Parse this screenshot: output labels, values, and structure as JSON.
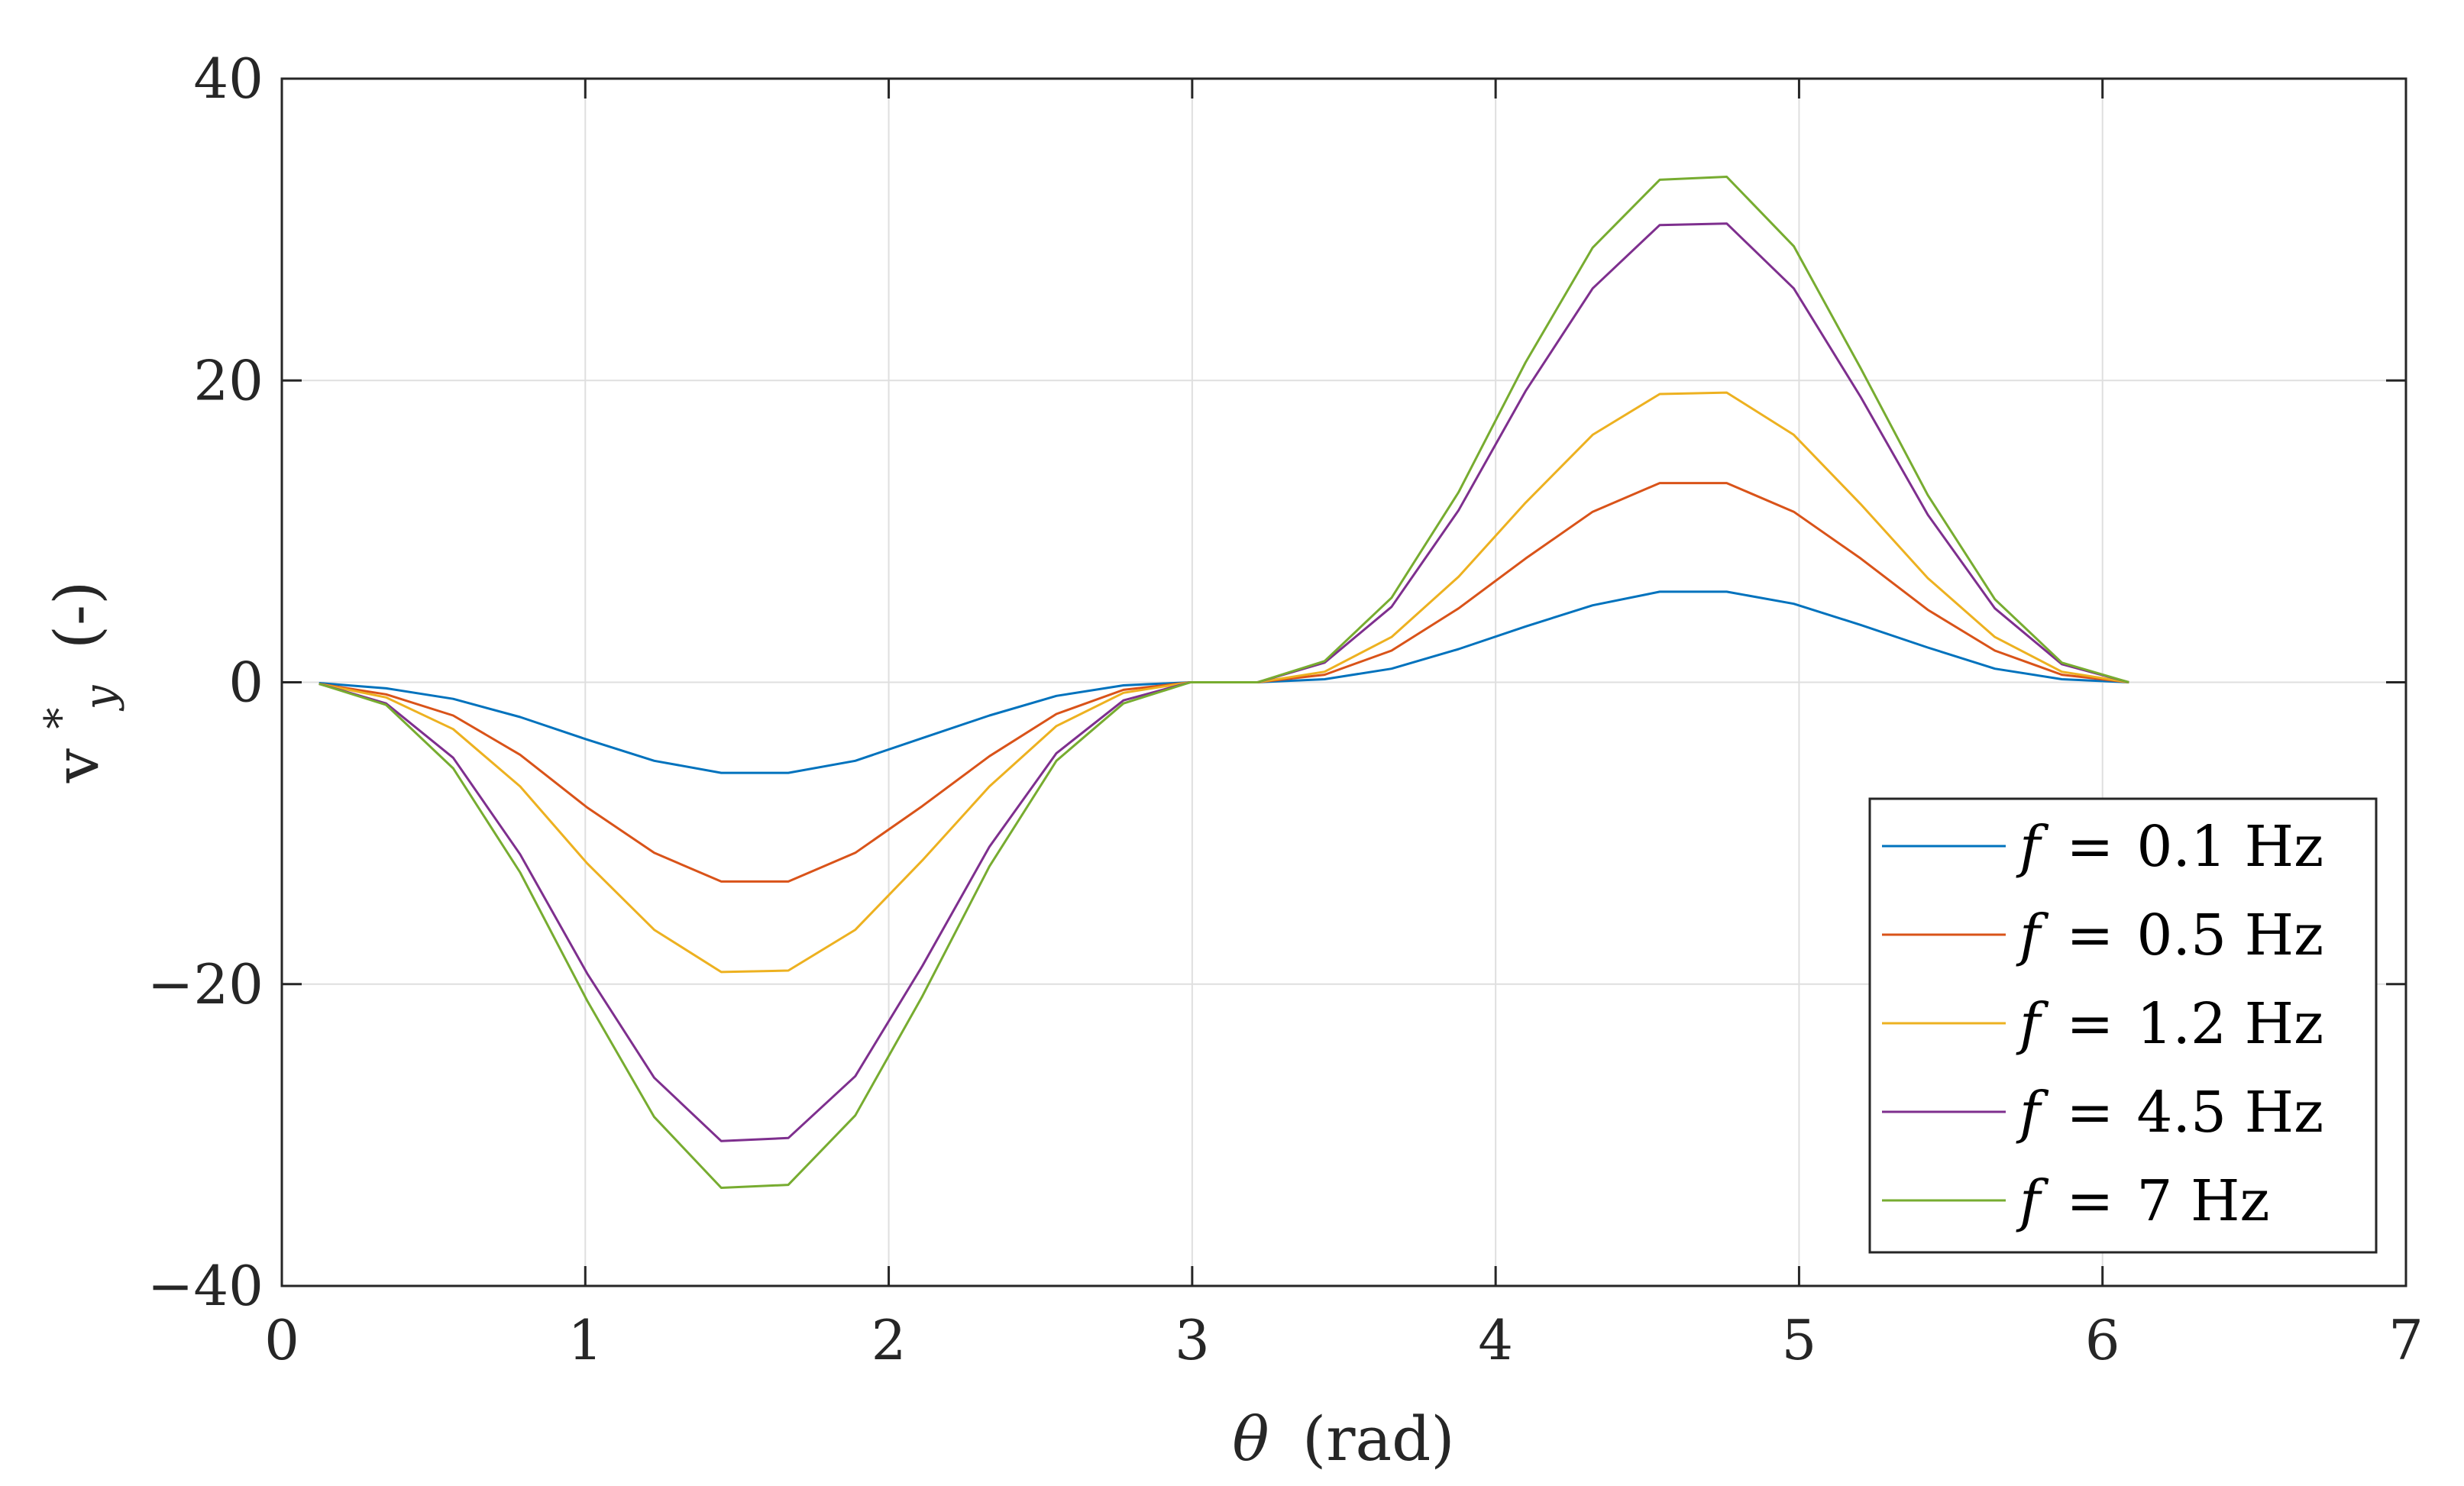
{
  "chart_data": {
    "type": "line",
    "title": "",
    "xlabel_symbol": "θ",
    "xlabel_unit": "(rad)",
    "ylabel_symbol": "v",
    "ylabel_superscript": "*",
    "ylabel_subscript": "y",
    "ylabel_unit": "(-)",
    "xlim": [
      0,
      7
    ],
    "ylim": [
      -40,
      40
    ],
    "xticks": [
      0,
      1,
      2,
      3,
      4,
      5,
      6,
      7
    ],
    "yticks": [
      -40,
      -20,
      0,
      20,
      40
    ],
    "xtick_labels": [
      "0",
      "1",
      "2",
      "3",
      "4",
      "5",
      "6",
      "7"
    ],
    "ytick_labels": [
      "−40",
      "−20",
      "0",
      "20",
      "40"
    ],
    "grid": true,
    "legend_position": "bottom-right",
    "x": [
      0.1227,
      0.3436,
      0.5645,
      0.7854,
      1.0063,
      1.2272,
      1.4481,
      1.669,
      1.8899,
      2.1108,
      2.3317,
      2.5526,
      2.7735,
      2.9944,
      3.2153,
      3.4362,
      3.6571,
      3.878,
      4.0989,
      4.3198,
      4.5407,
      4.7616,
      4.9825,
      5.2034,
      5.4243,
      5.6452,
      5.8661,
      6.087
    ],
    "series": [
      {
        "name": "0.1 Hz",
        "color": "#0072BD",
        "values": [
          -0.05,
          -0.4,
          -1.1,
          -2.3,
          -3.8,
          -5.2,
          -6.0,
          -6.0,
          -5.2,
          -3.7,
          -2.2,
          -0.9,
          -0.2,
          0.0,
          0.0,
          0.2,
          0.9,
          2.2,
          3.7,
          5.1,
          6.0,
          6.0,
          5.2,
          3.8,
          2.3,
          0.9,
          0.2,
          0.0
        ]
      },
      {
        "name": "0.5 Hz",
        "color": "#D95319",
        "values": [
          -0.1,
          -0.8,
          -2.2,
          -4.8,
          -8.3,
          -11.3,
          -13.2,
          -13.2,
          -11.3,
          -8.2,
          -4.9,
          -2.1,
          -0.5,
          0.0,
          0.0,
          0.5,
          2.1,
          4.9,
          8.2,
          11.3,
          13.2,
          13.2,
          11.3,
          8.2,
          4.8,
          2.1,
          0.5,
          0.0
        ]
      },
      {
        "name": "1.2 Hz",
        "color": "#EDB120",
        "values": [
          -0.1,
          -1.0,
          -3.1,
          -6.9,
          -12.0,
          -16.4,
          -19.2,
          -19.1,
          -16.4,
          -11.8,
          -6.9,
          -2.9,
          -0.7,
          0.0,
          0.0,
          0.7,
          3.0,
          7.0,
          11.9,
          16.4,
          19.1,
          19.2,
          16.4,
          11.8,
          6.9,
          3.0,
          0.7,
          0.0
        ]
      },
      {
        "name": "4.5 Hz",
        "color": "#7E2F8E",
        "values": [
          -0.1,
          -1.4,
          -5.0,
          -11.4,
          -19.3,
          -26.2,
          -30.4,
          -30.2,
          -26.1,
          -18.8,
          -10.9,
          -4.7,
          -1.2,
          0.0,
          0.0,
          1.3,
          5.0,
          11.4,
          19.3,
          26.1,
          30.3,
          30.4,
          26.1,
          18.9,
          11.1,
          4.9,
          1.2,
          0.0
        ]
      },
      {
        "name": "7 Hz",
        "color": "#77AC30",
        "values": [
          -0.1,
          -1.5,
          -5.7,
          -12.6,
          -21.1,
          -28.8,
          -33.5,
          -33.3,
          -28.7,
          -20.8,
          -12.2,
          -5.2,
          -1.4,
          0.0,
          0.0,
          1.4,
          5.6,
          12.6,
          21.2,
          28.8,
          33.3,
          33.5,
          28.9,
          20.8,
          12.4,
          5.5,
          1.3,
          0.0
        ]
      }
    ],
    "legend_symbol": "f",
    "legend_equals": "="
  }
}
